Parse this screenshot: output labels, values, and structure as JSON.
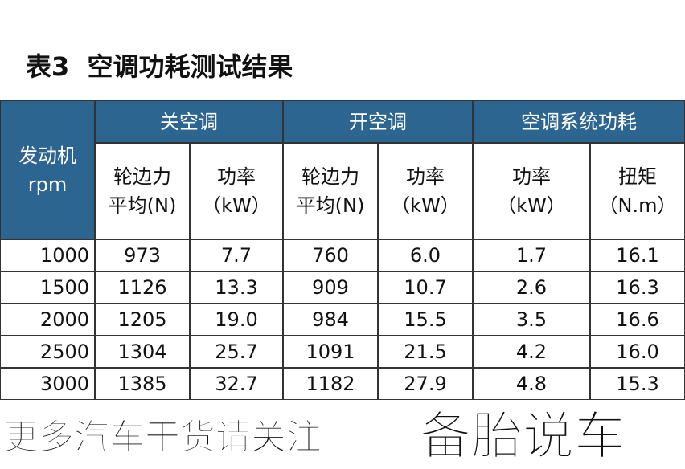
{
  "title": "表3  空调功耗测试结果",
  "table": {
    "corner": [
      "发动机",
      "rpm"
    ],
    "groups": [
      "关空调",
      "开空调",
      "空调系统功耗"
    ],
    "sub_headers": [
      [
        "轮边力",
        "平均(N)"
      ],
      [
        "功率",
        "（kW）"
      ],
      [
        "轮边力",
        "平均(N)"
      ],
      [
        "功率",
        "（kW）"
      ],
      [
        "功率",
        "（kW）"
      ],
      [
        "扭矩",
        "（N.m）"
      ]
    ],
    "rows": [
      [
        "1000",
        "973",
        "7.7",
        "760",
        "6.0",
        "1.7",
        "16.1"
      ],
      [
        "1500",
        "1126",
        "13.3",
        "909",
        "10.7",
        "2.6",
        "16.3"
      ],
      [
        "2000",
        "1205",
        "19.0",
        "984",
        "15.5",
        "3.5",
        "16.6"
      ],
      [
        "2500",
        "1304",
        "25.7",
        "1091",
        "21.5",
        "4.2",
        "16.0"
      ],
      [
        "3000",
        "1385",
        "32.7",
        "1182",
        "27.9",
        "4.8",
        "15.3"
      ]
    ]
  },
  "footer": {
    "text": "更多汽车干货请关注",
    "brand": "备胎说车"
  }
}
